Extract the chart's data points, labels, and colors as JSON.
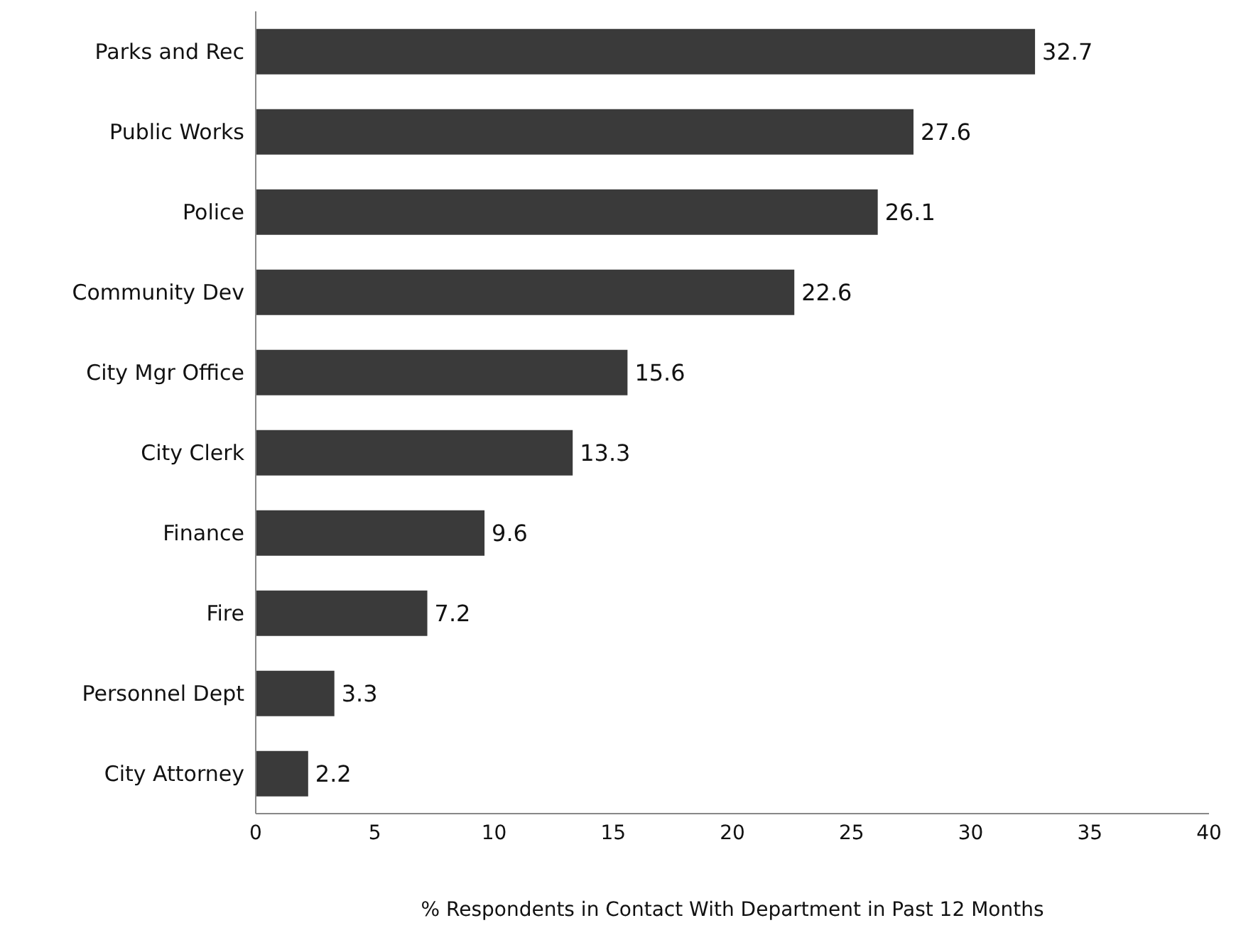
{
  "chart_data": {
    "type": "bar",
    "orientation": "horizontal",
    "xlabel": "% Respondents in Contact With Department in Past 12 Months",
    "categories": [
      "Parks and Rec",
      "Public Works",
      "Police",
      "Community Dev",
      "City Mgr Office",
      "City Clerk",
      "Finance",
      "Fire",
      "Personnel Dept",
      "City Attorney"
    ],
    "values": [
      32.7,
      27.6,
      26.1,
      22.6,
      15.6,
      13.3,
      9.6,
      7.2,
      3.3,
      2.2
    ],
    "color": "#3a3a3a",
    "xlim": [
      0,
      40
    ],
    "xticks": [
      0,
      5,
      10,
      15,
      20,
      25,
      30,
      35,
      40
    ],
    "grid": false,
    "data_labels": true,
    "legend": false
  }
}
